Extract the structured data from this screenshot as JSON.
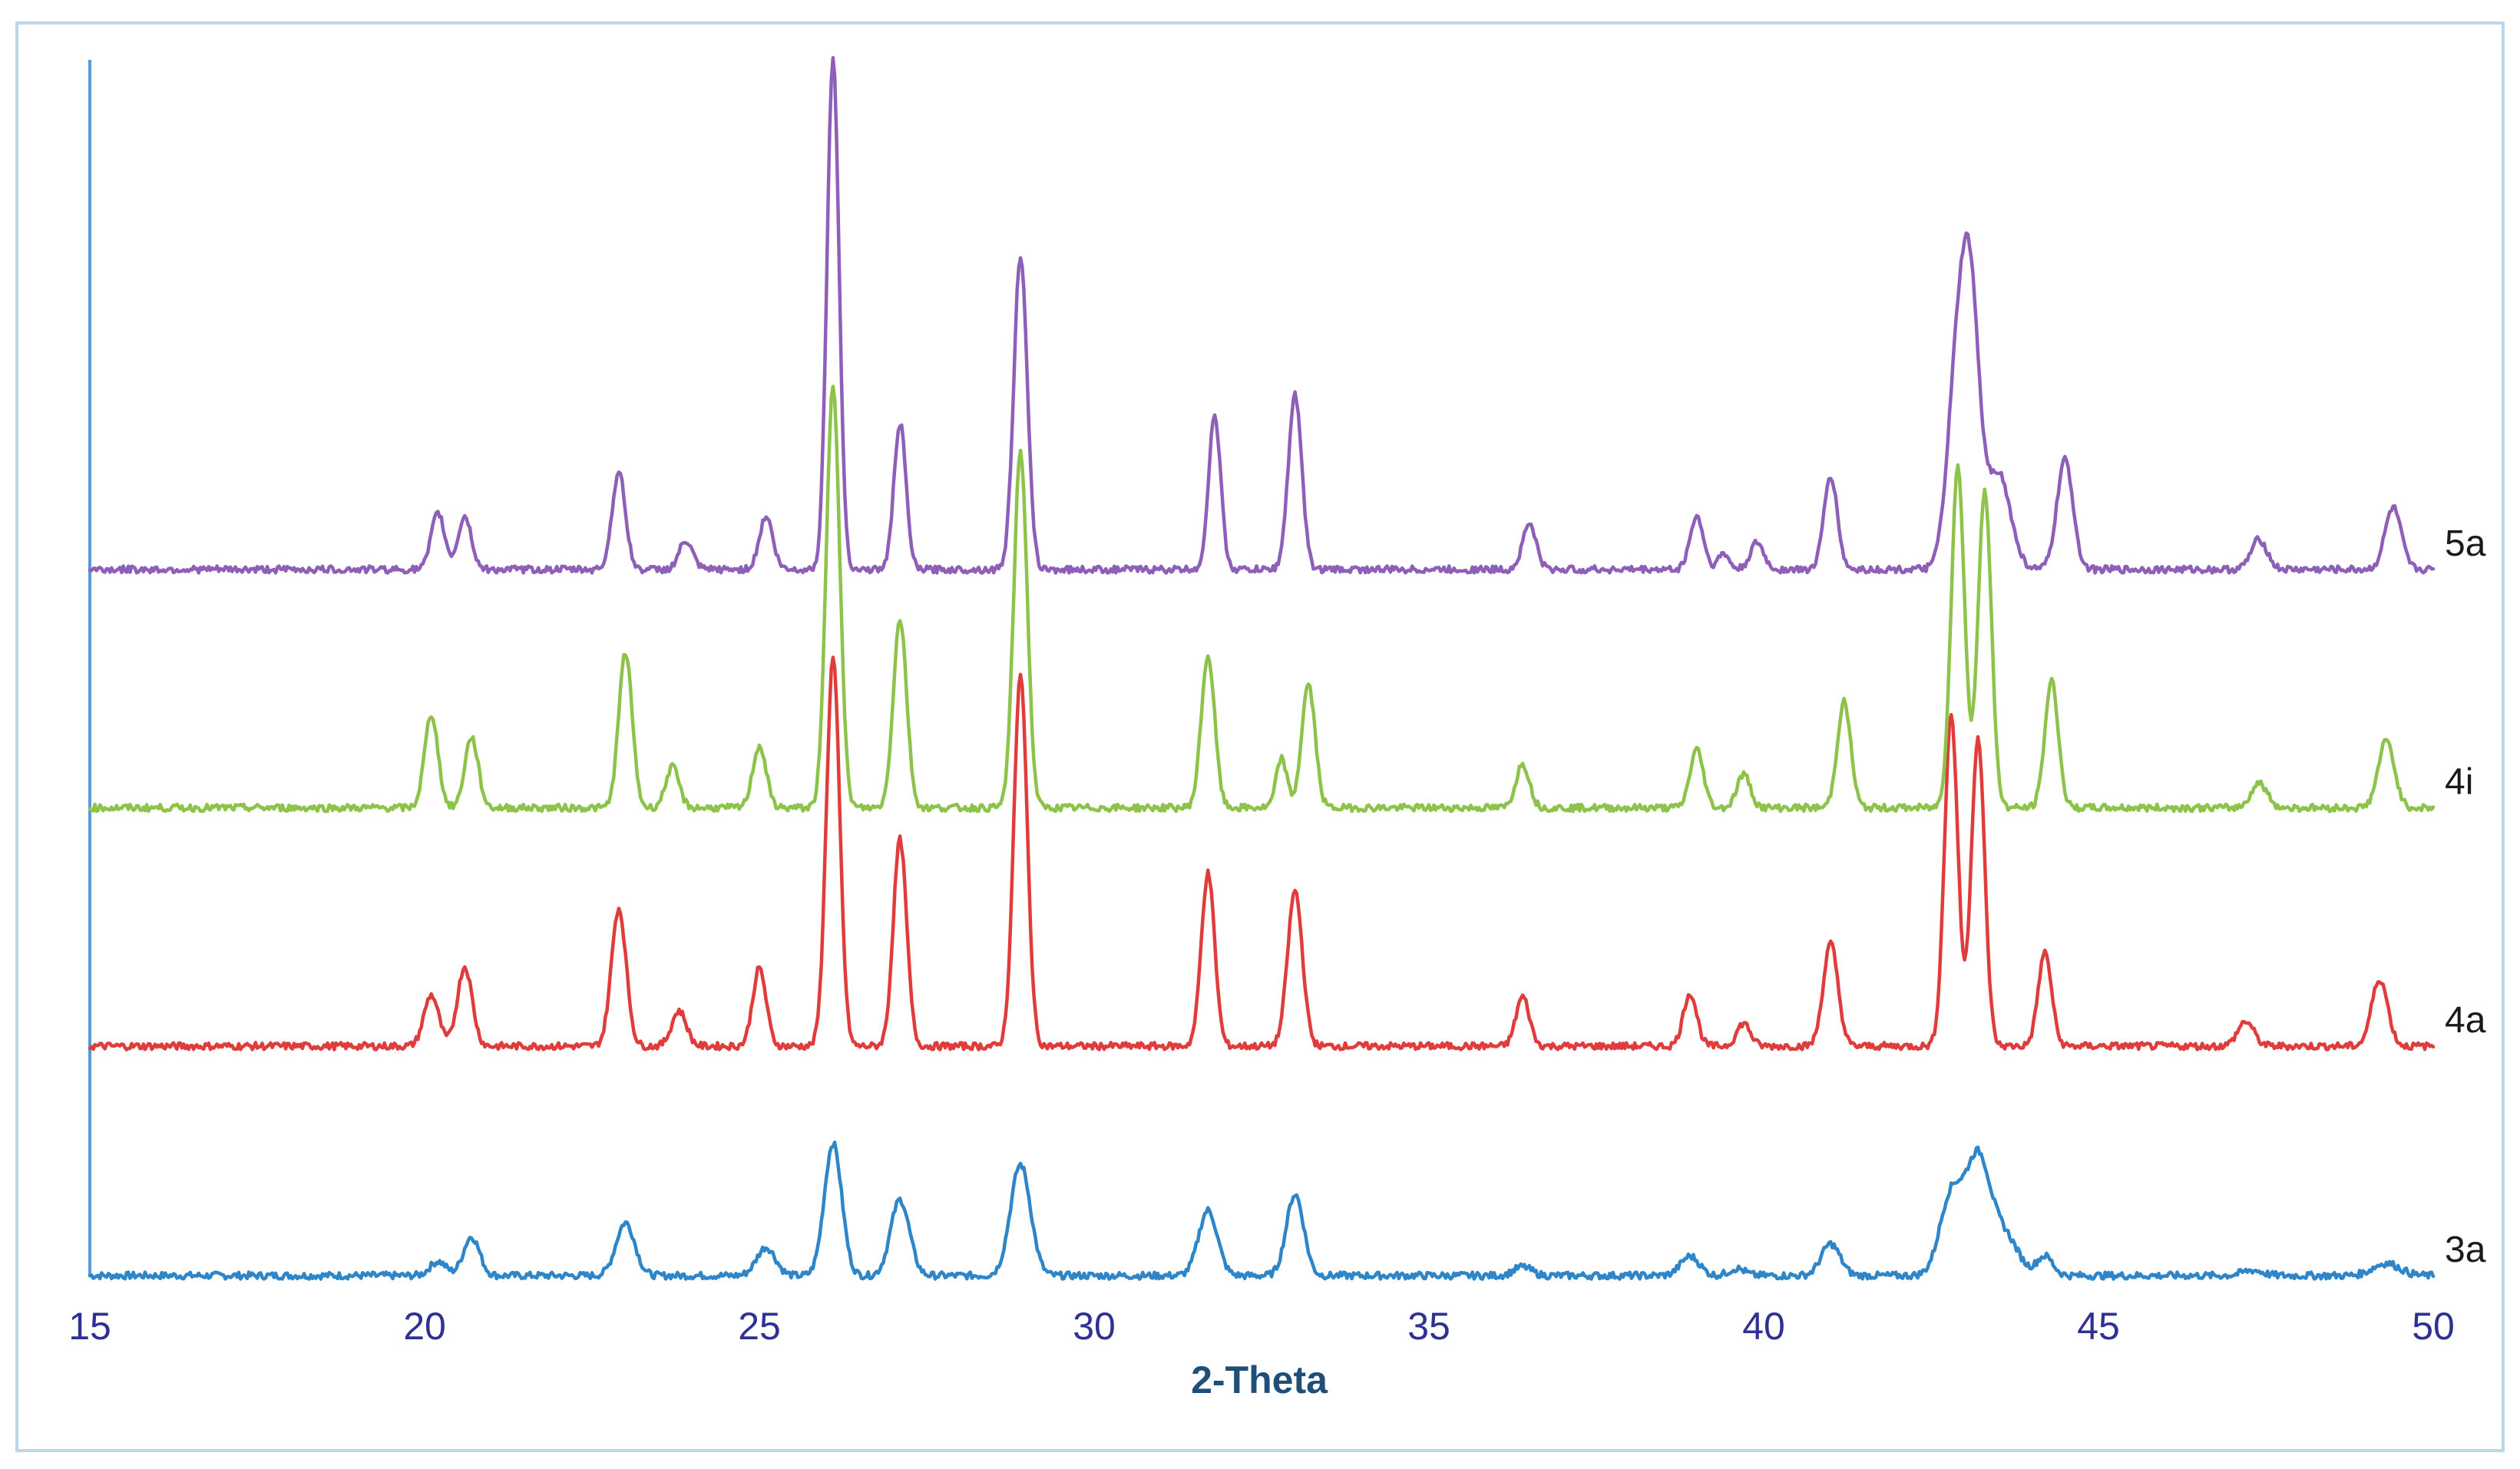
{
  "chart_data": {
    "type": "line",
    "title": "",
    "xlabel": "2-Theta",
    "ylabel": "",
    "xlim": [
      15,
      50
    ],
    "xticks": [
      15,
      20,
      25,
      30,
      35,
      40,
      45,
      50
    ],
    "grid": false,
    "legend": "none (series labelled at right end of each trace)",
    "colors": {
      "frame": "#bcd6ea",
      "axis": "#5b9bd5",
      "tick_text": "#2e3192",
      "axis_title": "#1f4e79"
    },
    "series": [
      {
        "name": "3a",
        "color": "#2e86c8",
        "baseline": 0,
        "peaks": [
          [
            20.2,
            8,
            0.12
          ],
          [
            20.7,
            22,
            0.12
          ],
          [
            23,
            30,
            0.14
          ],
          [
            25.1,
            16,
            0.14
          ],
          [
            26.1,
            75,
            0.13
          ],
          [
            27.1,
            43,
            0.14
          ],
          [
            28.9,
            63,
            0.15
          ],
          [
            31.7,
            37,
            0.14
          ],
          [
            33,
            46,
            0.13
          ],
          [
            36.4,
            5,
            0.13
          ],
          [
            38.9,
            11,
            0.14
          ],
          [
            39.6,
            4,
            0.12
          ],
          [
            41,
            18,
            0.14
          ],
          [
            42.8,
            45,
            0.17
          ],
          [
            43.2,
            65,
            0.18
          ],
          [
            43.6,
            22,
            0.2
          ],
          [
            44.2,
            11,
            0.12
          ],
          [
            47.3,
            3,
            0.15
          ],
          [
            49.3,
            7,
            0.2
          ]
        ]
      },
      {
        "name": "4a",
        "color": "#e03c3c",
        "baseline": 130,
        "peaks": [
          [
            20.1,
            29,
            0.11
          ],
          [
            20.6,
            45,
            0.11
          ],
          [
            22.9,
            78,
            0.11
          ],
          [
            23.8,
            20,
            0.11
          ],
          [
            25,
            44,
            0.1
          ],
          [
            26.1,
            220,
            0.1
          ],
          [
            27.1,
            117,
            0.1
          ],
          [
            28.9,
            210,
            0.1
          ],
          [
            31.7,
            98,
            0.1
          ],
          [
            33,
            88,
            0.11
          ],
          [
            36.4,
            28,
            0.1
          ],
          [
            38.9,
            30,
            0.1
          ],
          [
            39.7,
            13,
            0.1
          ],
          [
            41,
            58,
            0.11
          ],
          [
            42.8,
            188,
            0.1
          ],
          [
            43.2,
            175,
            0.1
          ],
          [
            44.2,
            53,
            0.1
          ],
          [
            47.2,
            14,
            0.12
          ],
          [
            49.2,
            38,
            0.12
          ]
        ]
      },
      {
        "name": "4i",
        "color": "#8dc24b",
        "baseline": 265,
        "peaks": [
          [
            20.1,
            53,
            0.1
          ],
          [
            20.7,
            40,
            0.1
          ],
          [
            23,
            88,
            0.1
          ],
          [
            23.7,
            23,
            0.1
          ],
          [
            25,
            35,
            0.1
          ],
          [
            26.1,
            240,
            0.1
          ],
          [
            27.1,
            107,
            0.1
          ],
          [
            28.9,
            202,
            0.1
          ],
          [
            31.7,
            86,
            0.1
          ],
          [
            32.8,
            28,
            0.08
          ],
          [
            33.2,
            70,
            0.1
          ],
          [
            36.4,
            25,
            0.1
          ],
          [
            39,
            33,
            0.1
          ],
          [
            39.7,
            19,
            0.1
          ],
          [
            41.2,
            60,
            0.1
          ],
          [
            42.9,
            193,
            0.1
          ],
          [
            43.3,
            180,
            0.1
          ],
          [
            44.3,
            72,
            0.1
          ],
          [
            47.4,
            14,
            0.12
          ],
          [
            49.3,
            38,
            0.12
          ]
        ]
      },
      {
        "name": "5a",
        "color": "#8e5fb8",
        "baseline": 400,
        "peaks": [
          [
            20.2,
            32,
            0.1
          ],
          [
            20.6,
            30,
            0.1
          ],
          [
            22.9,
            55,
            0.1
          ],
          [
            23.9,
            16,
            0.1
          ],
          [
            25.1,
            30,
            0.1
          ],
          [
            26.1,
            290,
            0.09
          ],
          [
            27.1,
            83,
            0.09
          ],
          [
            28.9,
            178,
            0.1
          ],
          [
            31.8,
            87,
            0.09
          ],
          [
            33,
            99,
            0.1
          ],
          [
            36.5,
            26,
            0.1
          ],
          [
            39,
            30,
            0.1
          ],
          [
            39.4,
            9,
            0.08
          ],
          [
            39.9,
            15,
            0.1
          ],
          [
            41,
            53,
            0.1
          ],
          [
            42.9,
            115,
            0.15
          ],
          [
            43.1,
            125,
            0.13
          ],
          [
            43.5,
            55,
            0.18
          ],
          [
            44.5,
            62,
            0.12
          ],
          [
            47.4,
            17,
            0.12
          ],
          [
            49.4,
            35,
            0.12
          ]
        ]
      }
    ],
    "series_labels": [
      "5a",
      "4i",
      "4a",
      "3a"
    ]
  }
}
